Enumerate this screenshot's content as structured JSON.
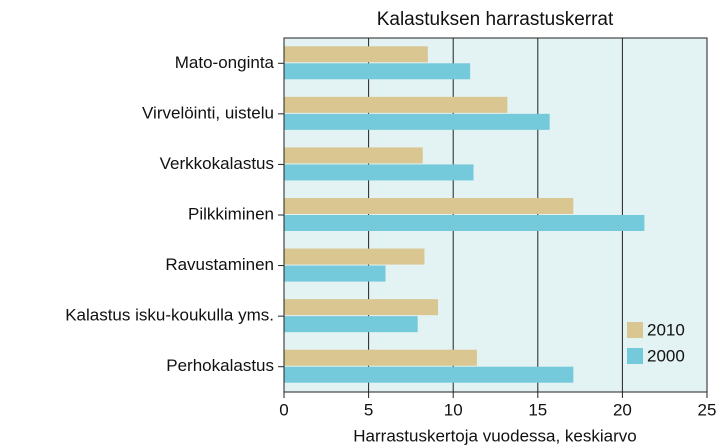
{
  "chart_data": {
    "type": "hbar",
    "title": "Kalastuksen harrastuskerrat",
    "x_label": "Harrastuskertoja vuodessa, keskiarvo",
    "categories": [
      "Mato-onginta",
      "Virvelöinti, uistelu",
      "Verkkokalastus",
      "Pilkkiminen",
      "Ravustaminen",
      "Kalastus isku-koukulla yms.",
      "Perhokalastus"
    ],
    "series": [
      {
        "name": "2010",
        "color": "#d9c690",
        "values": [
          8.5,
          13.2,
          8.2,
          17.1,
          8.3,
          9.1,
          11.4
        ]
      },
      {
        "name": "2000",
        "color": "#74c9da",
        "values": [
          11.0,
          15.7,
          11.2,
          21.3,
          6.0,
          7.9,
          17.1
        ]
      }
    ],
    "xlim": [
      0,
      25
    ],
    "xticks": [
      0,
      5,
      10,
      15,
      20,
      25
    ],
    "grid": true,
    "legend": "lower right"
  }
}
